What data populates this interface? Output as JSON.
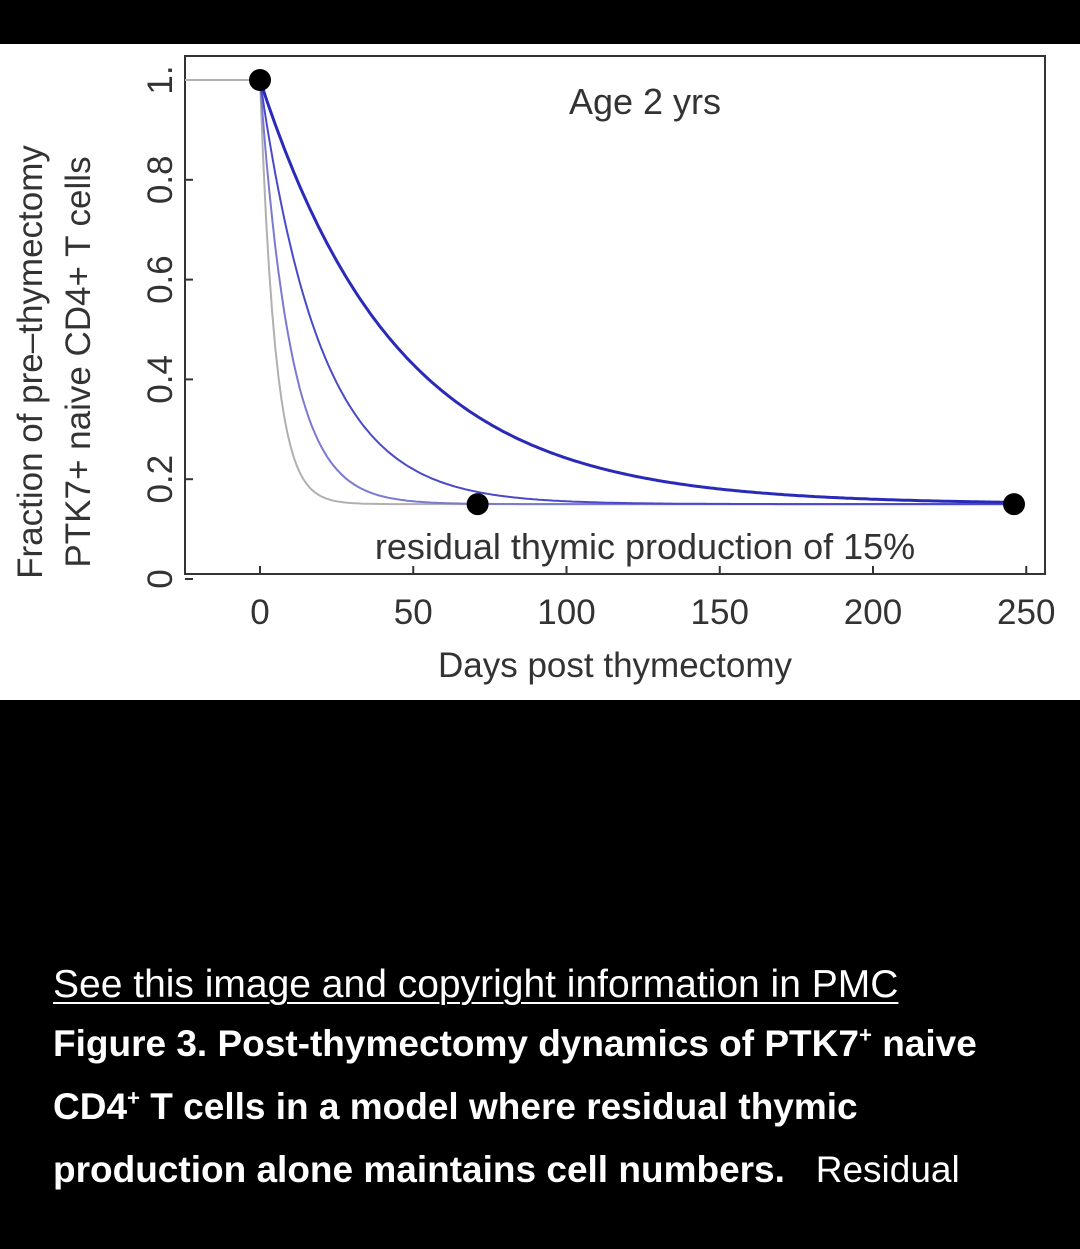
{
  "chart_data": {
    "type": "line",
    "title": "Age 2 yrs",
    "xlabel": "Days post thymectomy",
    "ylabel_line1": "Fraction of pre–thymectomy",
    "ylabel_line2": "PTK7+ naive CD4+ T cells",
    "xlim": [
      -25,
      250
    ],
    "ylim": [
      0,
      1
    ],
    "x_ticks": [
      0,
      50,
      100,
      150,
      200,
      250
    ],
    "x_tick_labels": [
      "0",
      "50",
      "100",
      "150",
      "200",
      "250"
    ],
    "y_ticks": [
      0,
      0.2,
      0.4,
      0.6,
      0.8,
      1
    ],
    "y_tick_labels": [
      "0",
      "0.2",
      "0.4",
      "0.6",
      "0.8",
      "1."
    ],
    "annotation": "residual thymic production of 15%",
    "asymptote": 0.15,
    "series": [
      {
        "decay_constant_days": 5,
        "color": "#b0b0b0"
      },
      {
        "decay_constant_days": 10,
        "color": "#7a7ad0"
      },
      {
        "decay_constant_days": 20,
        "color": "#4a4ac8"
      },
      {
        "decay_constant_days": 45,
        "color": "#2a2ab8"
      }
    ],
    "points": [
      {
        "x": 0,
        "y": 1.0
      },
      {
        "x": 71,
        "y": 0.15
      },
      {
        "x": 246,
        "y": 0.15
      }
    ],
    "pre_thymectomy": {
      "x_start": -25,
      "x_end": 0,
      "y": 1.0,
      "color": "#b0b0b0"
    }
  },
  "caption": {
    "link_text": "See this image and copyright information in PMC",
    "bold_parts": [
      "Figure 3. Post-thymectomy dynamics of PTK7",
      "+",
      " naive CD4",
      "+",
      " T cells in a model where residual thymic production alone maintains cell numbers."
    ],
    "normal_text": "Residual"
  }
}
